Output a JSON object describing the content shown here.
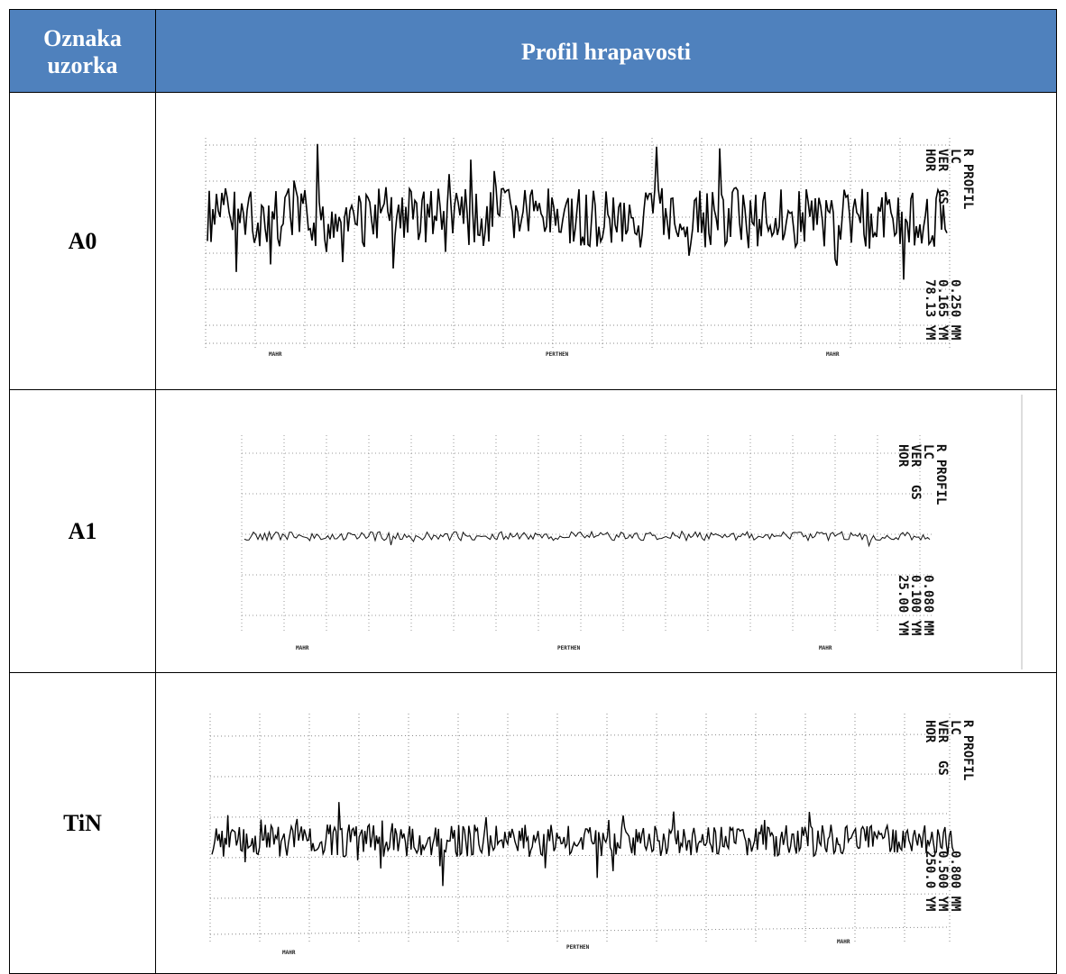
{
  "table": {
    "header": {
      "sample_col": "Oznaka uzorka",
      "profile_col": "Profil hrapavosti"
    },
    "rows": [
      {
        "label": "A0",
        "profile": {
          "settings_left": [
            "R PROFIL",
            "LC",
            "VER",
            "HOR"
          ],
          "settings_right": [
            "",
            "0.250 MM",
            "0.165 YM",
            "78.13 YM"
          ],
          "lc_value": "0.250 MM",
          "ver_gs": "GS",
          "footer": [
            "MAHR",
            "PERTHEN",
            "MAHR"
          ]
        }
      },
      {
        "label": "A1",
        "profile": {
          "settings_left": [
            "R PROFIL",
            "LC",
            "VER",
            "HOR"
          ],
          "settings_right": [
            "",
            "0.080 MM",
            "0.100 YM",
            "25.00 YM"
          ],
          "ver_gs": "GS",
          "footer": [
            "MAHR",
            "PERTHEN",
            "MAHR"
          ]
        }
      },
      {
        "label": "TiN",
        "profile": {
          "settings_left": [
            "R PROFIL",
            "LC",
            "VER",
            "HOR"
          ],
          "settings_right": [
            "",
            "0.800 MM",
            "0.500 YM",
            "250.0 YM"
          ],
          "ver_gs": "GS",
          "footer": [
            "MAHR",
            "PERTHEN",
            "MAHR"
          ]
        }
      }
    ]
  }
}
